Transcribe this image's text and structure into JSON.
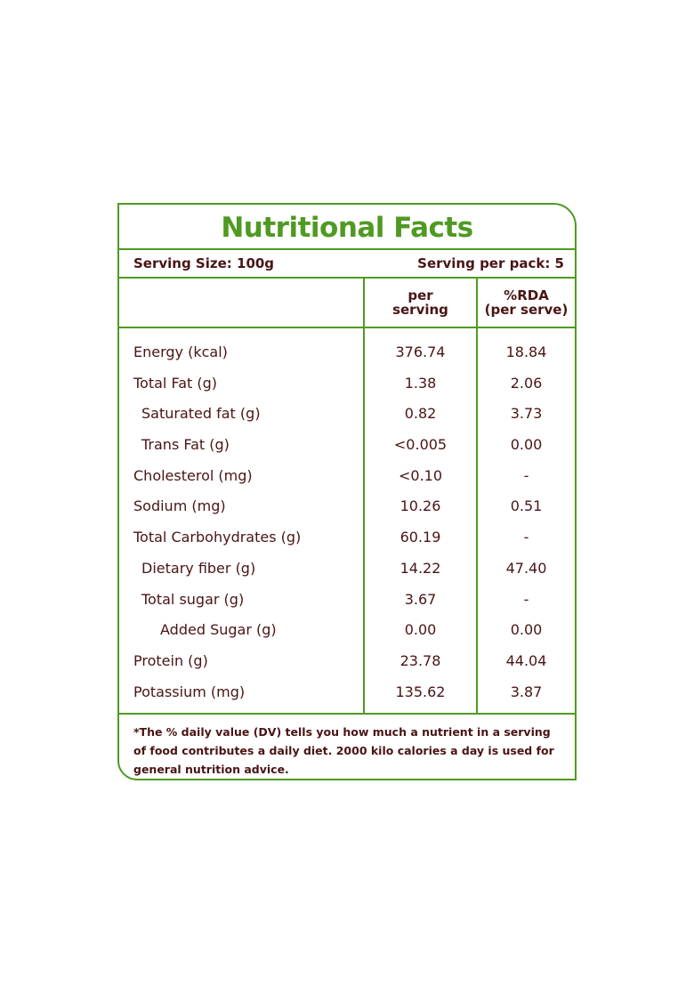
{
  "title": "Nutritional Facts",
  "serving_size": "Serving Size: 100g",
  "serving_per_pack": "Serving per pack: 5",
  "columns": {
    "per_serving": [
      "per",
      "serving"
    ],
    "rda": [
      "%RDA",
      "(per serve)"
    ]
  },
  "rows": [
    {
      "name": "Energy (kcal)",
      "per": "376.74",
      "rda": "18.84",
      "indent": 0
    },
    {
      "name": "Total Fat (g)",
      "per": "1.38",
      "rda": "2.06",
      "indent": 0
    },
    {
      "name": "Saturated fat (g)",
      "per": "0.82",
      "rda": "3.73",
      "indent": 1
    },
    {
      "name": "Trans Fat (g)",
      "per": "<0.005",
      "rda": "0.00",
      "indent": 1
    },
    {
      "name": "Cholesterol (mg)",
      "per": "<0.10",
      "rda": "-",
      "indent": 0
    },
    {
      "name": "Sodium (mg)",
      "per": "10.26",
      "rda": "0.51",
      "indent": 0
    },
    {
      "name": "Total Carbohydrates  (g)",
      "per": "60.19",
      "rda": "-",
      "indent": 0
    },
    {
      "name": "Dietary fiber (g)",
      "per": "14.22",
      "rda": "47.40",
      "indent": 1
    },
    {
      "name": "Total sugar (g)",
      "per": "3.67",
      "rda": "-",
      "indent": 1
    },
    {
      "name": "Added Sugar (g)",
      "per": "0.00",
      "rda": "0.00",
      "indent": 2
    },
    {
      "name": "Protein (g)",
      "per": "23.78",
      "rda": "44.04",
      "indent": 0
    },
    {
      "name": "Potassium (mg)",
      "per": "135.62",
      "rda": "3.87",
      "indent": 0
    }
  ],
  "footnote": [
    "*The % daily value (DV) tells you how much a nutrient in a serving",
    "of food contributes a daily diet. 2000 kilo calories a day is used for",
    "general nutrition advice."
  ],
  "colors": {
    "border": "#4f9a22",
    "title": "#4f9a22",
    "text": "#4a1414"
  }
}
